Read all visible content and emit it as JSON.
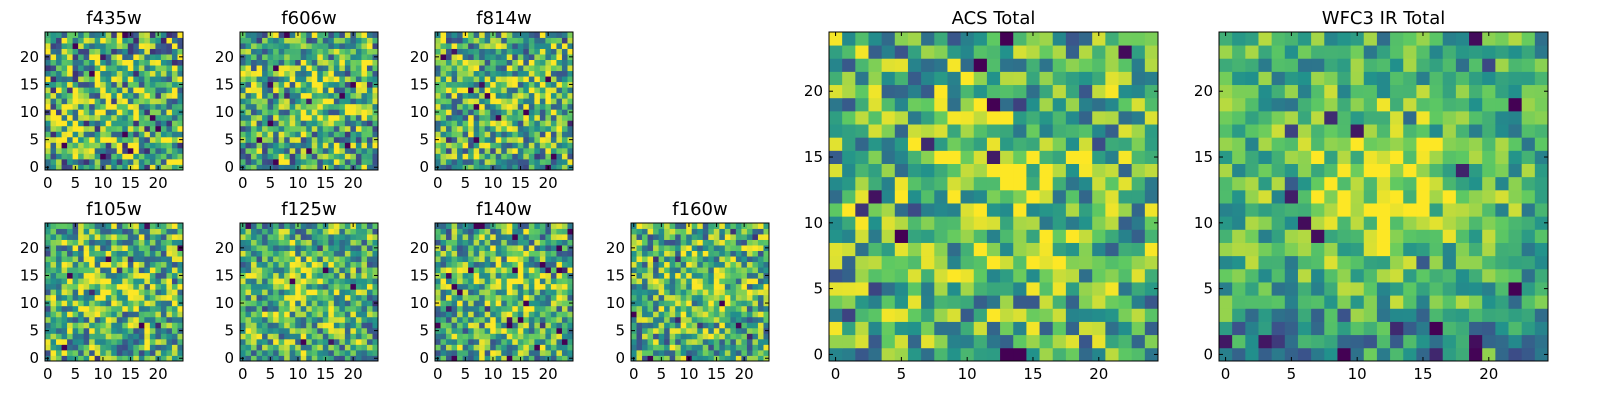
{
  "chart_data": [
    {
      "type": "heatmap",
      "title": "f435w",
      "x_ticks": [
        "0",
        "5",
        "10",
        "15",
        "20"
      ],
      "y_ticks": [
        "0",
        "5",
        "10",
        "15",
        "20"
      ],
      "xlim": [
        0,
        25
      ],
      "ylim": [
        0,
        25
      ],
      "grid": false,
      "seed": 11,
      "structure": 0.15
    },
    {
      "type": "heatmap",
      "title": "f606w",
      "x_ticks": [
        "0",
        "5",
        "10",
        "15",
        "20"
      ],
      "y_ticks": [
        "0",
        "5",
        "10",
        "15",
        "20"
      ],
      "xlim": [
        0,
        25
      ],
      "ylim": [
        0,
        25
      ],
      "grid": false,
      "seed": 23,
      "structure": 0.35
    },
    {
      "type": "heatmap",
      "title": "f814w",
      "x_ticks": [
        "0",
        "5",
        "10",
        "15",
        "20"
      ],
      "y_ticks": [
        "0",
        "5",
        "10",
        "15",
        "20"
      ],
      "xlim": [
        0,
        25
      ],
      "ylim": [
        0,
        25
      ],
      "grid": false,
      "seed": 37,
      "structure": 0.4
    },
    {
      "type": "heatmap",
      "title": "f105w",
      "x_ticks": [
        "0",
        "5",
        "10",
        "15",
        "20"
      ],
      "y_ticks": [
        "0",
        "5",
        "10",
        "15",
        "20"
      ],
      "xlim": [
        0,
        25
      ],
      "ylim": [
        0,
        25
      ],
      "grid": false,
      "seed": 41,
      "structure": 0.45
    },
    {
      "type": "heatmap",
      "title": "f125w",
      "x_ticks": [
        "0",
        "5",
        "10",
        "15",
        "20"
      ],
      "y_ticks": [
        "0",
        "5",
        "10",
        "15",
        "20"
      ],
      "xlim": [
        0,
        25
      ],
      "ylim": [
        0,
        25
      ],
      "grid": false,
      "seed": 53,
      "structure": 0.5
    },
    {
      "type": "heatmap",
      "title": "f140w",
      "x_ticks": [
        "0",
        "5",
        "10",
        "15",
        "20"
      ],
      "y_ticks": [
        "0",
        "5",
        "10",
        "15",
        "20"
      ],
      "xlim": [
        0,
        25
      ],
      "ylim": [
        0,
        25
      ],
      "grid": false,
      "seed": 67,
      "structure": 0.5
    },
    {
      "type": "heatmap",
      "title": "f160w",
      "x_ticks": [
        "0",
        "5",
        "10",
        "15",
        "20"
      ],
      "y_ticks": [
        "0",
        "5",
        "10",
        "15",
        "20"
      ],
      "xlim": [
        0,
        25
      ],
      "ylim": [
        0,
        25
      ],
      "grid": false,
      "seed": 79,
      "structure": 0.5
    },
    {
      "type": "heatmap",
      "title": "ACS Total",
      "x_ticks": [
        "0",
        "5",
        "10",
        "15",
        "20"
      ],
      "y_ticks": [
        "0",
        "5",
        "10",
        "15",
        "20"
      ],
      "xlim": [
        0,
        25
      ],
      "ylim": [
        0,
        25
      ],
      "grid": false,
      "seed": 97,
      "structure": 0.55
    },
    {
      "type": "heatmap",
      "title": "WFC3 IR Total",
      "x_ticks": [
        "0",
        "5",
        "10",
        "15",
        "20"
      ],
      "y_ticks": [
        "0",
        "5",
        "10",
        "15",
        "20"
      ],
      "xlim": [
        0,
        25
      ],
      "ylim": [
        0,
        25
      ],
      "grid": false,
      "seed": 131,
      "structure": 0.85
    }
  ],
  "colormap": [
    "#440154",
    "#3b528b",
    "#21918c",
    "#5ec962",
    "#fde725"
  ]
}
